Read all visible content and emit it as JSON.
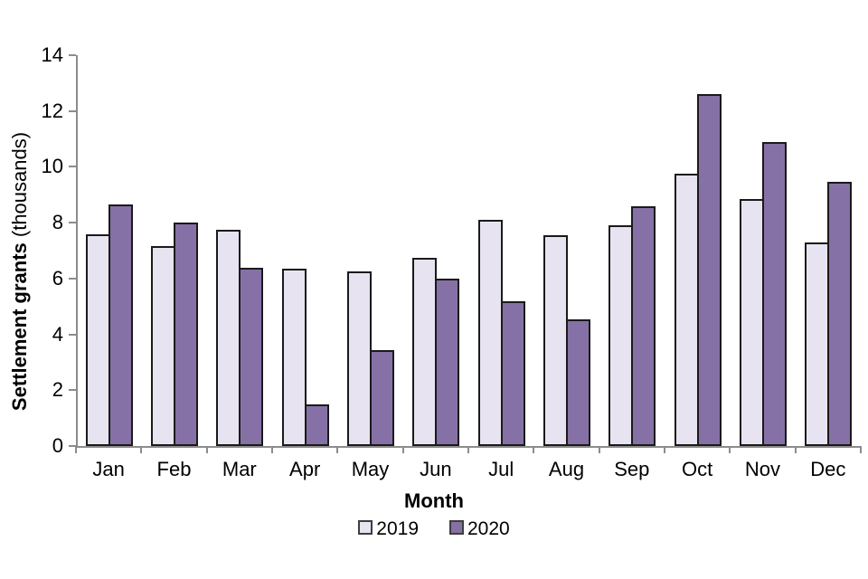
{
  "figure": {
    "background": "#ffffff",
    "axis_color": "#8c8c8c",
    "text_color": "#000000"
  },
  "chart_data": {
    "type": "bar",
    "title": "",
    "xlabel": "Month",
    "ylabel_bold": "Settlement grants",
    "ylabel_normal": " (thousands)",
    "categories": [
      "Jan",
      "Feb",
      "Mar",
      "Apr",
      "May",
      "Jun",
      "Jul",
      "Aug",
      "Sep",
      "Oct",
      "Nov",
      "Dec"
    ],
    "series": [
      {
        "name": "2019",
        "color": "#e8e3f0",
        "values": [
          7.6,
          7.15,
          7.75,
          6.35,
          6.25,
          6.75,
          8.1,
          7.55,
          7.9,
          9.75,
          8.85,
          7.3
        ]
      },
      {
        "name": "2020",
        "color": "#8571a5",
        "values": [
          8.65,
          8.0,
          6.4,
          1.5,
          3.45,
          6.0,
          5.2,
          4.55,
          8.6,
          12.6,
          10.9,
          9.45
        ]
      }
    ],
    "ylim": [
      0,
      14
    ],
    "yticks": [
      0,
      2,
      4,
      6,
      8,
      10,
      12,
      14
    ],
    "bar_outline": "#1a1a1a",
    "grid": false,
    "legend_position": "bottom"
  }
}
